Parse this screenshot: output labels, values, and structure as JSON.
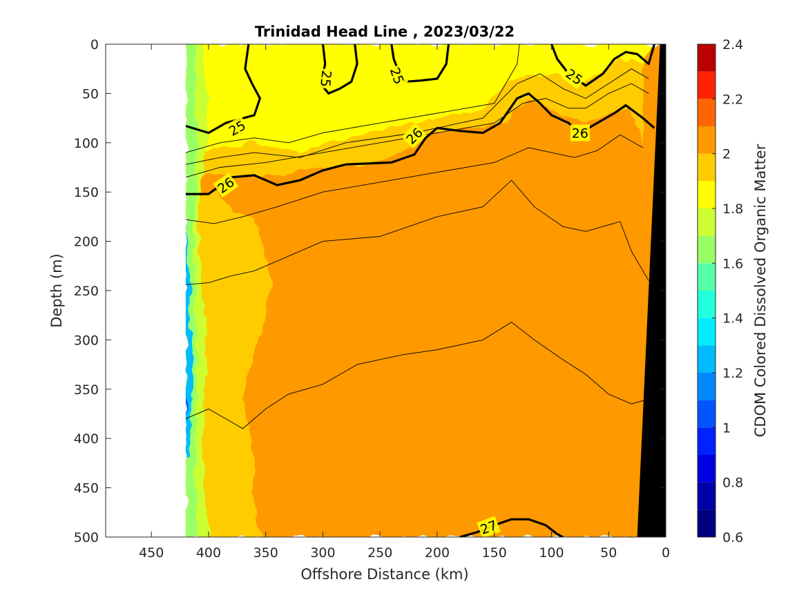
{
  "chart_data": {
    "type": "contour",
    "title": "Trinidad Head Line , 2023/03/22",
    "xlabel": "Offshore Distance (km)",
    "ylabel": "Depth (m)",
    "xlim": [
      490,
      0
    ],
    "ylim": [
      0,
      500
    ],
    "x_reversed": true,
    "y_reversed": true,
    "xticks": [
      450,
      400,
      350,
      300,
      250,
      200,
      150,
      100,
      50,
      0
    ],
    "yticks": [
      0,
      50,
      100,
      150,
      200,
      250,
      300,
      350,
      400,
      450,
      500
    ],
    "colorbar": {
      "label": "CDOM Colored Dissolved Organic Matter",
      "range": [
        0.6,
        2.4
      ],
      "ticks": [
        0.6,
        0.8,
        1,
        1.2,
        1.4,
        1.6,
        1.8,
        2,
        2.2,
        2.4
      ],
      "levels": [
        {
          "min": 0.6,
          "max": 0.7,
          "color": "#00007f"
        },
        {
          "min": 0.7,
          "max": 0.8,
          "color": "#0000a8"
        },
        {
          "min": 0.8,
          "max": 0.9,
          "color": "#0000e0"
        },
        {
          "min": 0.9,
          "max": 1.0,
          "color": "#0022ff"
        },
        {
          "min": 1.0,
          "max": 1.1,
          "color": "#0055ff"
        },
        {
          "min": 1.1,
          "max": 1.2,
          "color": "#0088ff"
        },
        {
          "min": 1.2,
          "max": 1.3,
          "color": "#00bbff"
        },
        {
          "min": 1.3,
          "max": 1.4,
          "color": "#00eeff"
        },
        {
          "min": 1.4,
          "max": 1.5,
          "color": "#22ffdd"
        },
        {
          "min": 1.5,
          "max": 1.6,
          "color": "#55ffaa"
        },
        {
          "min": 1.6,
          "max": 1.7,
          "color": "#99ff66"
        },
        {
          "min": 1.7,
          "max": 1.8,
          "color": "#ccff33"
        },
        {
          "min": 1.8,
          "max": 1.9,
          "color": "#ffff00"
        },
        {
          "min": 1.9,
          "max": 2.0,
          "color": "#ffcc00"
        },
        {
          "min": 2.0,
          "max": 2.1,
          "color": "#ff9900"
        },
        {
          "min": 2.1,
          "max": 2.2,
          "color": "#ff6600"
        },
        {
          "min": 2.2,
          "max": 2.3,
          "color": "#ff2200"
        },
        {
          "min": 2.3,
          "max": 2.4,
          "color": "#bb0000"
        }
      ]
    },
    "data_start_km": 420,
    "bottom_topography": [
      [
        25,
        500
      ],
      [
        5,
        0
      ],
      [
        0,
        0
      ],
      [
        0,
        500
      ]
    ],
    "cdom_regions": [
      {
        "value": 2.05,
        "polygon": [
          [
            420,
            500
          ],
          [
            420,
            0
          ],
          [
            0,
            0
          ],
          [
            0,
            500
          ]
        ]
      },
      {
        "value": 1.95,
        "polygon": [
          [
            420,
            160
          ],
          [
            390,
            150
          ],
          [
            380,
            170
          ],
          [
            360,
            175
          ],
          [
            350,
            210
          ],
          [
            345,
            240
          ],
          [
            350,
            280
          ],
          [
            360,
            310
          ],
          [
            370,
            360
          ],
          [
            360,
            420
          ],
          [
            360,
            480
          ],
          [
            350,
            500
          ],
          [
            420,
            500
          ]
        ]
      },
      {
        "value": 1.95,
        "polygon": [
          [
            420,
            130
          ],
          [
            360,
            135
          ],
          [
            300,
            125
          ],
          [
            250,
            120
          ],
          [
            200,
            90
          ],
          [
            140,
            80
          ],
          [
            120,
            55
          ],
          [
            75,
            80
          ],
          [
            30,
            65
          ],
          [
            20,
            100
          ],
          [
            20,
            0
          ],
          [
            420,
            0
          ]
        ]
      },
      {
        "value": 1.85,
        "polygon": [
          [
            420,
            110
          ],
          [
            360,
            100
          ],
          [
            320,
            110
          ],
          [
            280,
            95
          ],
          [
            220,
            80
          ],
          [
            160,
            65
          ],
          [
            135,
            35
          ],
          [
            95,
            30
          ],
          [
            80,
            45
          ],
          [
            40,
            15
          ],
          [
            20,
            20
          ],
          [
            10,
            0
          ],
          [
            420,
            0
          ]
        ]
      },
      {
        "value": 1.75,
        "polygon": [
          [
            420,
            500
          ],
          [
            420,
            0
          ],
          [
            405,
            0
          ],
          [
            400,
            80
          ],
          [
            410,
            180
          ],
          [
            402,
            300
          ],
          [
            405,
            420
          ],
          [
            400,
            500
          ]
        ]
      },
      {
        "value": 1.65,
        "polygon": [
          [
            420,
            500
          ],
          [
            420,
            0
          ],
          [
            412,
            0
          ],
          [
            410,
            100
          ],
          [
            413,
            200
          ],
          [
            410,
            320
          ],
          [
            412,
            430
          ],
          [
            410,
            500
          ]
        ]
      },
      {
        "value": 1.25,
        "polygon": [
          [
            420,
            420
          ],
          [
            420,
            180
          ],
          [
            416,
            250
          ],
          [
            414,
            340
          ],
          [
            417,
            420
          ]
        ]
      },
      {
        "value": 1.05,
        "polygon": [
          [
            420,
            380
          ],
          [
            420,
            350
          ],
          [
            418,
            365
          ]
        ]
      }
    ],
    "density_contours": [
      {
        "level": 25,
        "labeled": true,
        "points": [
          [
            420,
            83
          ],
          [
            400,
            90
          ],
          [
            385,
            80
          ],
          [
            360,
            72
          ],
          [
            355,
            55
          ],
          [
            362,
            40
          ],
          [
            368,
            25
          ],
          [
            365,
            0
          ]
        ]
      },
      {
        "level": 25,
        "labeled": true,
        "points": [
          [
            300,
            0
          ],
          [
            298,
            20
          ],
          [
            302,
            40
          ],
          [
            295,
            50
          ],
          [
            285,
            45
          ],
          [
            275,
            38
          ],
          [
            270,
            20
          ],
          [
            272,
            0
          ]
        ]
      },
      {
        "level": 25,
        "labeled": true,
        "points": [
          [
            240,
            0
          ],
          [
            238,
            15
          ],
          [
            233,
            30
          ],
          [
            228,
            38
          ],
          [
            215,
            37
          ],
          [
            200,
            35
          ],
          [
            192,
            20
          ],
          [
            190,
            0
          ]
        ]
      },
      {
        "level": 25,
        "labeled": true,
        "points": [
          [
            100,
            0
          ],
          [
            95,
            15
          ],
          [
            85,
            30
          ],
          [
            70,
            42
          ],
          [
            55,
            30
          ],
          [
            45,
            15
          ],
          [
            35,
            8
          ],
          [
            25,
            10
          ],
          [
            15,
            20
          ],
          [
            10,
            0
          ]
        ]
      },
      {
        "level": 26,
        "labeled": true,
        "points": [
          [
            420,
            152
          ],
          [
            400,
            152
          ],
          [
            380,
            135
          ],
          [
            360,
            133
          ],
          [
            340,
            143
          ],
          [
            320,
            138
          ],
          [
            300,
            128
          ],
          [
            280,
            122
          ],
          [
            240,
            120
          ],
          [
            220,
            112
          ],
          [
            210,
            95
          ],
          [
            200,
            85
          ],
          [
            180,
            88
          ],
          [
            160,
            90
          ],
          [
            145,
            80
          ],
          [
            130,
            55
          ],
          [
            120,
            50
          ],
          [
            110,
            60
          ],
          [
            100,
            72
          ],
          [
            85,
            80
          ],
          [
            75,
            90
          ],
          [
            60,
            80
          ],
          [
            45,
            70
          ],
          [
            35,
            62
          ],
          [
            20,
            75
          ],
          [
            10,
            85
          ]
        ]
      },
      {
        "level": 27,
        "labeled": true,
        "points": [
          [
            180,
            500
          ],
          [
            165,
            495
          ],
          [
            150,
            488
          ],
          [
            135,
            482
          ],
          [
            120,
            482
          ],
          [
            105,
            488
          ],
          [
            95,
            497
          ],
          [
            90,
            500
          ]
        ]
      }
    ],
    "thin_contours": [
      [
        [
          420,
          110
        ],
        [
          390,
          100
        ],
        [
          360,
          95
        ],
        [
          330,
          100
        ],
        [
          300,
          90
        ],
        [
          250,
          80
        ],
        [
          200,
          70
        ],
        [
          150,
          60
        ],
        [
          130,
          20
        ],
        [
          128,
          0
        ]
      ],
      [
        [
          420,
          122
        ],
        [
          390,
          115
        ],
        [
          360,
          110
        ],
        [
          320,
          115
        ],
        [
          280,
          100
        ],
        [
          220,
          90
        ],
        [
          160,
          75
        ],
        [
          130,
          40
        ],
        [
          110,
          30
        ],
        [
          90,
          45
        ],
        [
          70,
          55
        ],
        [
          50,
          40
        ],
        [
          30,
          25
        ],
        [
          15,
          35
        ]
      ],
      [
        [
          420,
          135
        ],
        [
          390,
          125
        ],
        [
          350,
          120
        ],
        [
          300,
          110
        ],
        [
          250,
          100
        ],
        [
          200,
          90
        ],
        [
          150,
          80
        ],
        [
          125,
          60
        ],
        [
          105,
          55
        ],
        [
          85,
          65
        ],
        [
          70,
          65
        ],
        [
          50,
          50
        ],
        [
          30,
          40
        ],
        [
          15,
          50
        ]
      ],
      [
        [
          420,
          178
        ],
        [
          395,
          182
        ],
        [
          370,
          175
        ],
        [
          340,
          165
        ],
        [
          300,
          150
        ],
        [
          250,
          140
        ],
        [
          200,
          130
        ],
        [
          150,
          120
        ],
        [
          120,
          105
        ],
        [
          100,
          110
        ],
        [
          80,
          115
        ],
        [
          60,
          108
        ],
        [
          40,
          92
        ],
        [
          20,
          105
        ]
      ],
      [
        [
          420,
          244
        ],
        [
          400,
          242
        ],
        [
          380,
          235
        ],
        [
          360,
          230
        ],
        [
          340,
          220
        ],
        [
          300,
          200
        ],
        [
          250,
          195
        ],
        [
          200,
          175
        ],
        [
          160,
          165
        ],
        [
          135,
          138
        ],
        [
          115,
          165
        ],
        [
          90,
          185
        ],
        [
          70,
          190
        ],
        [
          40,
          180
        ],
        [
          30,
          210
        ],
        [
          15,
          240
        ]
      ],
      [
        [
          420,
          380
        ],
        [
          400,
          370
        ],
        [
          385,
          380
        ],
        [
          370,
          390
        ],
        [
          350,
          370
        ],
        [
          330,
          355
        ],
        [
          300,
          345
        ],
        [
          270,
          325
        ],
        [
          230,
          315
        ],
        [
          200,
          310
        ],
        [
          160,
          300
        ],
        [
          135,
          282
        ],
        [
          115,
          300
        ],
        [
          90,
          320
        ],
        [
          70,
          335
        ],
        [
          50,
          355
        ],
        [
          30,
          365
        ],
        [
          15,
          360
        ]
      ]
    ],
    "contour_labels": [
      {
        "text": "25",
        "x": 375,
        "y": 85,
        "angle": -30
      },
      {
        "text": "25",
        "x": 297,
        "y": 35,
        "angle": 95
      },
      {
        "text": "25",
        "x": 235,
        "y": 32,
        "angle": 70
      },
      {
        "text": "25",
        "x": 80,
        "y": 33,
        "angle": 35
      },
      {
        "text": "26",
        "x": 385,
        "y": 143,
        "angle": -35
      },
      {
        "text": "26",
        "x": 220,
        "y": 93,
        "angle": -45
      },
      {
        "text": "26",
        "x": 75,
        "y": 90,
        "angle": 0
      },
      {
        "text": "27",
        "x": 155,
        "y": 490,
        "angle": -20
      }
    ]
  }
}
